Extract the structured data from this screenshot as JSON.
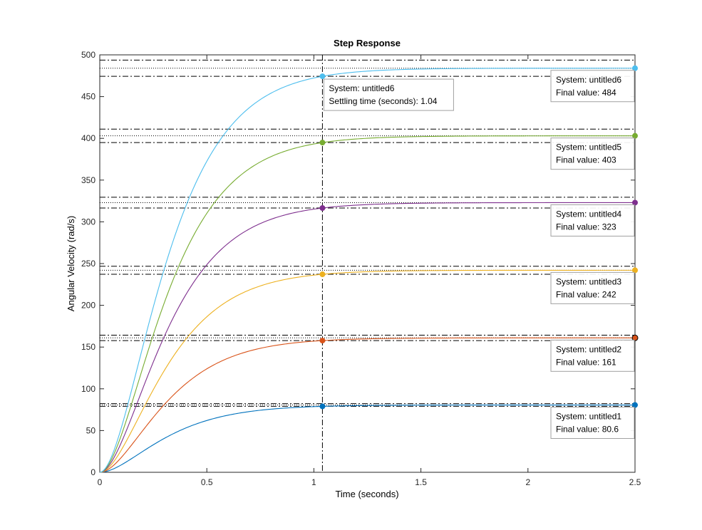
{
  "chart_data": {
    "type": "line",
    "title": "Step Response",
    "xlabel": "Time (seconds)",
    "ylabel": "Angular Velocity (rad/s)",
    "xlim": [
      0,
      2.5
    ],
    "ylim": [
      0,
      500
    ],
    "xticks": [
      0,
      0.5,
      1,
      1.5,
      2,
      2.5
    ],
    "xtick_labels": [
      "0",
      "0.5",
      "1",
      "1.5",
      "2",
      "2.5"
    ],
    "yticks": [
      0,
      50,
      100,
      150,
      200,
      250,
      300,
      350,
      400,
      450,
      500
    ],
    "ytick_labels": [
      "0",
      "50",
      "100",
      "150",
      "200",
      "250",
      "300",
      "350",
      "400",
      "450",
      "500"
    ],
    "grid": false,
    "settling_time": 1.04,
    "series": [
      {
        "name": "untitled1",
        "final": 80.6,
        "color": "#0072BD",
        "tip_lines": [
          "System: untitled1",
          "Final value: 80.6"
        ]
      },
      {
        "name": "untitled2",
        "final": 161,
        "color": "#D95319",
        "tip_lines": [
          "System: untitled2",
          "Final value: 161"
        ]
      },
      {
        "name": "untitled3",
        "final": 242,
        "color": "#EDB120",
        "tip_lines": [
          "System: untitled3",
          "Final value: 242"
        ]
      },
      {
        "name": "untitled4",
        "final": 323,
        "color": "#7E2F8E",
        "tip_lines": [
          "System: untitled4",
          "Final value: 323"
        ]
      },
      {
        "name": "untitled5",
        "final": 403,
        "color": "#77AC30",
        "tip_lines": [
          "System: untitled5",
          "Final value: 403"
        ]
      },
      {
        "name": "untitled6",
        "final": 484,
        "color": "#4DBEEE",
        "tip_lines": [
          "System: untitled6",
          "Final value: 484"
        ]
      }
    ],
    "settling_tip": {
      "system": "System: untitled6",
      "text": "Settling time (seconds): 1.04"
    }
  }
}
